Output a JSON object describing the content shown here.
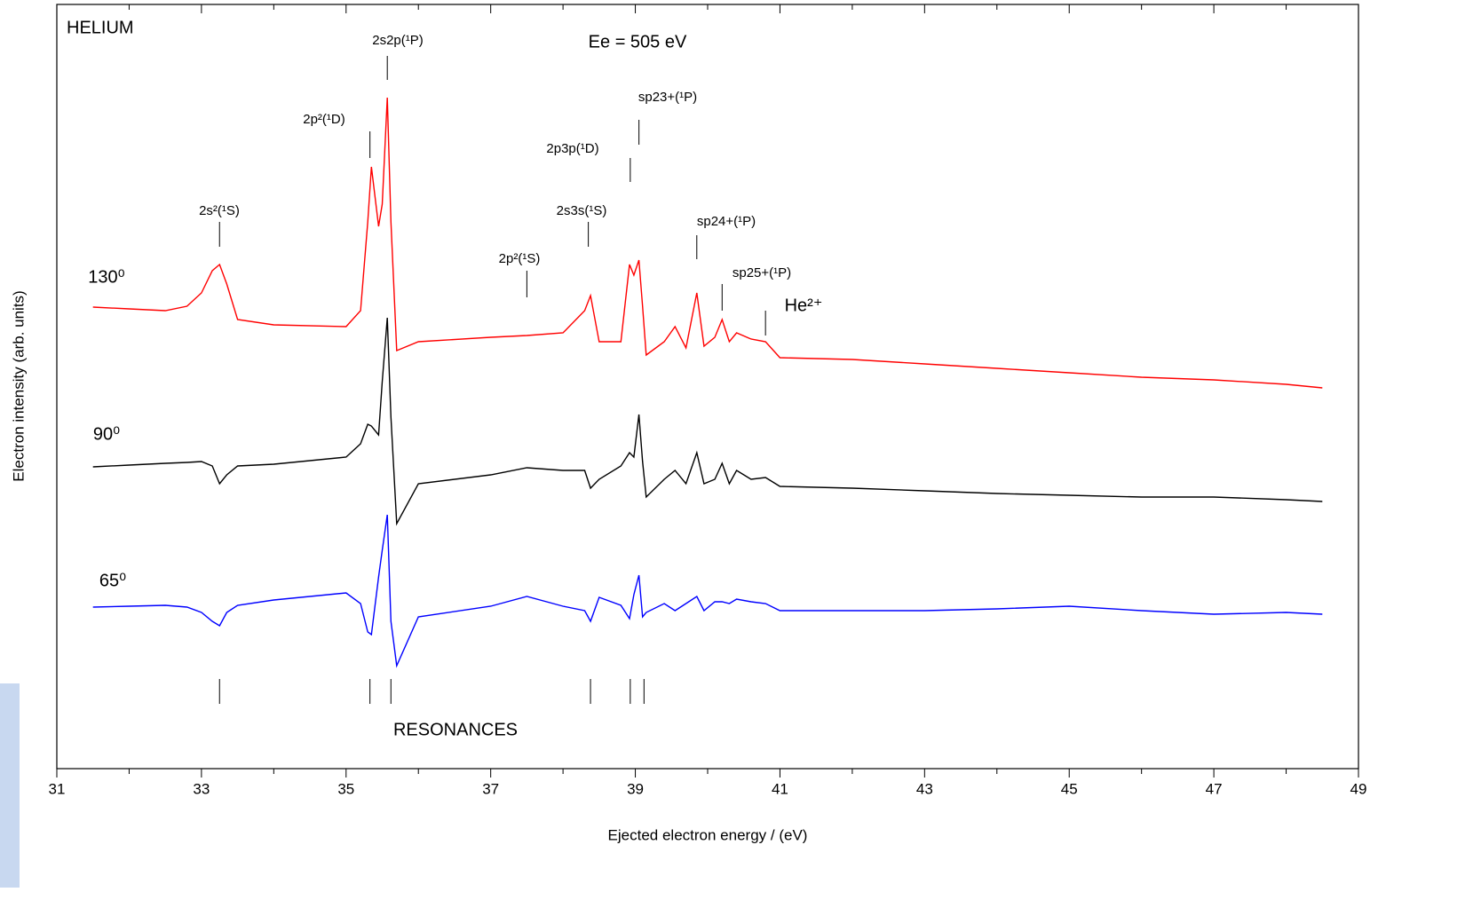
{
  "chart_data": {
    "type": "line",
    "title": "HELIUM",
    "subtitle": "Ee = 505 eV",
    "x_label": "Ejected electron energy / (eV)",
    "y_label": "Electron intensity (arb. units)",
    "xlim": [
      31,
      49
    ],
    "xticks": [
      31,
      33,
      35,
      37,
      39,
      41,
      43,
      45,
      47,
      49
    ],
    "xminorticks": [
      32,
      34,
      36,
      38,
      40,
      42,
      44,
      46,
      48
    ],
    "ylim": [
      0,
      861
    ],
    "x": [
      31.5,
      32.0,
      32.5,
      32.8,
      33.0,
      33.15,
      33.25,
      33.35,
      33.5,
      34.0,
      35.0,
      35.2,
      35.3,
      35.35,
      35.45,
      35.5,
      35.57,
      35.62,
      35.7,
      36.0,
      37.0,
      37.5,
      38.0,
      38.3,
      38.38,
      38.5,
      38.8,
      38.92,
      38.98,
      39.05,
      39.1,
      39.15,
      39.4,
      39.55,
      39.7,
      39.85,
      39.95,
      40.1,
      40.2,
      40.3,
      40.4,
      40.6,
      40.8,
      41.0,
      42.0,
      43.0,
      44.0,
      45.0,
      46.0,
      47.0,
      48.0,
      48.5
    ],
    "series": [
      {
        "name": "130⁰",
        "color": "#ff0000",
        "values": [
          520,
          518,
          516,
          521,
          536,
          561,
          568,
          546,
          506,
          500,
          498,
          516,
          616,
          678,
          611,
          636,
          756,
          616,
          471,
          481,
          486,
          488,
          491,
          516,
          533,
          481,
          481,
          568,
          556,
          573,
          521,
          466,
          481,
          498,
          474,
          536,
          476,
          486,
          506,
          481,
          491,
          484,
          481,
          463,
          461,
          456,
          451,
          446,
          441,
          438,
          433,
          429
        ]
      },
      {
        "name": "90⁰",
        "color": "#000000",
        "values": [
          340,
          342,
          344,
          345,
          346,
          341,
          321,
          331,
          341,
          343,
          351,
          366,
          388,
          386,
          376,
          436,
          508,
          396,
          276,
          321,
          331,
          339,
          336,
          336,
          316,
          326,
          341,
          356,
          351,
          399,
          346,
          306,
          326,
          336,
          321,
          356,
          321,
          326,
          344,
          321,
          336,
          326,
          328,
          318,
          316,
          313,
          310,
          308,
          306,
          306,
          303,
          301
        ]
      },
      {
        "name": "65⁰",
        "color": "#0000ff",
        "values": [
          182,
          183,
          184,
          182,
          176,
          166,
          161,
          176,
          184,
          190,
          198,
          186,
          154,
          151,
          216,
          246,
          286,
          166,
          116,
          171,
          183,
          194,
          183,
          178,
          166,
          193,
          184,
          169,
          196,
          218,
          171,
          176,
          186,
          178,
          186,
          194,
          178,
          188,
          188,
          186,
          191,
          188,
          186,
          178,
          178,
          178,
          180,
          183,
          178,
          174,
          176,
          174
        ]
      }
    ],
    "annotations": [
      {
        "label": "2s²(¹S)",
        "x": 33.25
      },
      {
        "label": "2p²(¹D)",
        "x": 35.33
      },
      {
        "label": "2s2p(¹P)",
        "x": 35.57
      },
      {
        "label": "2p²(¹S)",
        "x": 37.5
      },
      {
        "label": "2s3s(¹S)",
        "x": 38.35
      },
      {
        "label": "2p3p(¹D)",
        "x": 38.93
      },
      {
        "label": "sp23+(¹P)",
        "x": 39.05
      },
      {
        "label": "sp24+(¹P)",
        "x": 39.85
      },
      {
        "label": "sp25+(¹P)",
        "x": 40.2
      },
      {
        "label": "He²⁺",
        "x": 40.8
      }
    ],
    "resonances": {
      "label": "RESONANCES",
      "x": [
        33.25,
        35.33,
        35.62,
        38.38,
        38.93,
        39.12
      ]
    }
  }
}
